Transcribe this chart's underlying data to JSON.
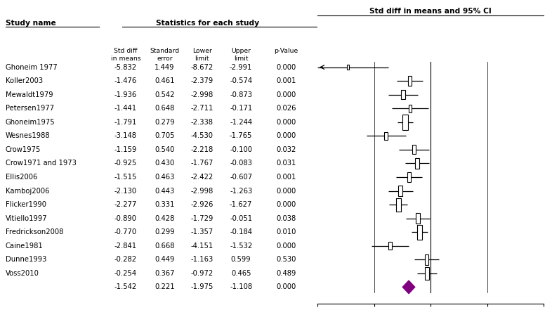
{
  "studies": [
    {
      "name": "Ghoneim 1977",
      "mean": -5.832,
      "se": 1.449,
      "lower": -8.672,
      "upper": -2.991,
      "pval": "0.000"
    },
    {
      "name": "Koller2003",
      "mean": -1.476,
      "se": 0.461,
      "lower": -2.379,
      "upper": -0.574,
      "pval": "0.001"
    },
    {
      "name": "Mewaldt1979",
      "mean": -1.936,
      "se": 0.542,
      "lower": -2.998,
      "upper": -0.873,
      "pval": "0.000"
    },
    {
      "name": "Petersen1977",
      "mean": -1.441,
      "se": 0.648,
      "lower": -2.711,
      "upper": -0.171,
      "pval": "0.026"
    },
    {
      "name": "Ghoneim1975",
      "mean": -1.791,
      "se": 0.279,
      "lower": -2.338,
      "upper": -1.244,
      "pval": "0.000"
    },
    {
      "name": "Wesnes1988",
      "mean": -3.148,
      "se": 0.705,
      "lower": -4.53,
      "upper": -1.765,
      "pval": "0.000"
    },
    {
      "name": "Crow1975",
      "mean": -1.159,
      "se": 0.54,
      "lower": -2.218,
      "upper": -0.1,
      "pval": "0.032"
    },
    {
      "name": "Crow1971 and 1973",
      "mean": -0.925,
      "se": 0.43,
      "lower": -1.767,
      "upper": -0.083,
      "pval": "0.031"
    },
    {
      "name": "Ellis2006",
      "mean": -1.515,
      "se": 0.463,
      "lower": -2.422,
      "upper": -0.607,
      "pval": "0.001"
    },
    {
      "name": "Kamboj2006",
      "mean": -2.13,
      "se": 0.443,
      "lower": -2.998,
      "upper": -1.263,
      "pval": "0.000"
    },
    {
      "name": "Flicker1990",
      "mean": -2.277,
      "se": 0.331,
      "lower": -2.926,
      "upper": -1.627,
      "pval": "0.000"
    },
    {
      "name": "Vitiello1997",
      "mean": -0.89,
      "se": 0.428,
      "lower": -1.729,
      "upper": -0.051,
      "pval": "0.038"
    },
    {
      "name": "Fredrickson2008",
      "mean": -0.77,
      "se": 0.299,
      "lower": -1.357,
      "upper": -0.184,
      "pval": "0.010"
    },
    {
      "name": "Caine1981",
      "mean": -2.841,
      "se": 0.668,
      "lower": -4.151,
      "upper": -1.532,
      "pval": "0.000"
    },
    {
      "name": "Dunne1993",
      "mean": -0.282,
      "se": 0.449,
      "lower": -1.163,
      "upper": 0.599,
      "pval": "0.530"
    },
    {
      "name": "Voss2010",
      "mean": -0.254,
      "se": 0.367,
      "lower": -0.972,
      "upper": 0.465,
      "pval": "0.489"
    },
    {
      "name": "",
      "mean": -1.542,
      "se": 0.221,
      "lower": -1.975,
      "upper": -1.108,
      "pval": "0.000",
      "is_summary": true
    }
  ],
  "col_headers": [
    "Std diff\nin means",
    "Standard\nerror",
    "Lower\nlimit",
    "Upper\nlimit",
    "p-Value"
  ],
  "left_header": "Study name",
  "right_header": "Std diff in means and 95% CI",
  "stats_header": "Statistics for each study",
  "xmin": -8.0,
  "xmax": 8.0,
  "xticks": [
    -8.0,
    -4.0,
    0.0,
    4.0,
    8.0
  ],
  "summary_color": "#800080",
  "box_color": "#ffffff",
  "box_edge_color": "#000000"
}
